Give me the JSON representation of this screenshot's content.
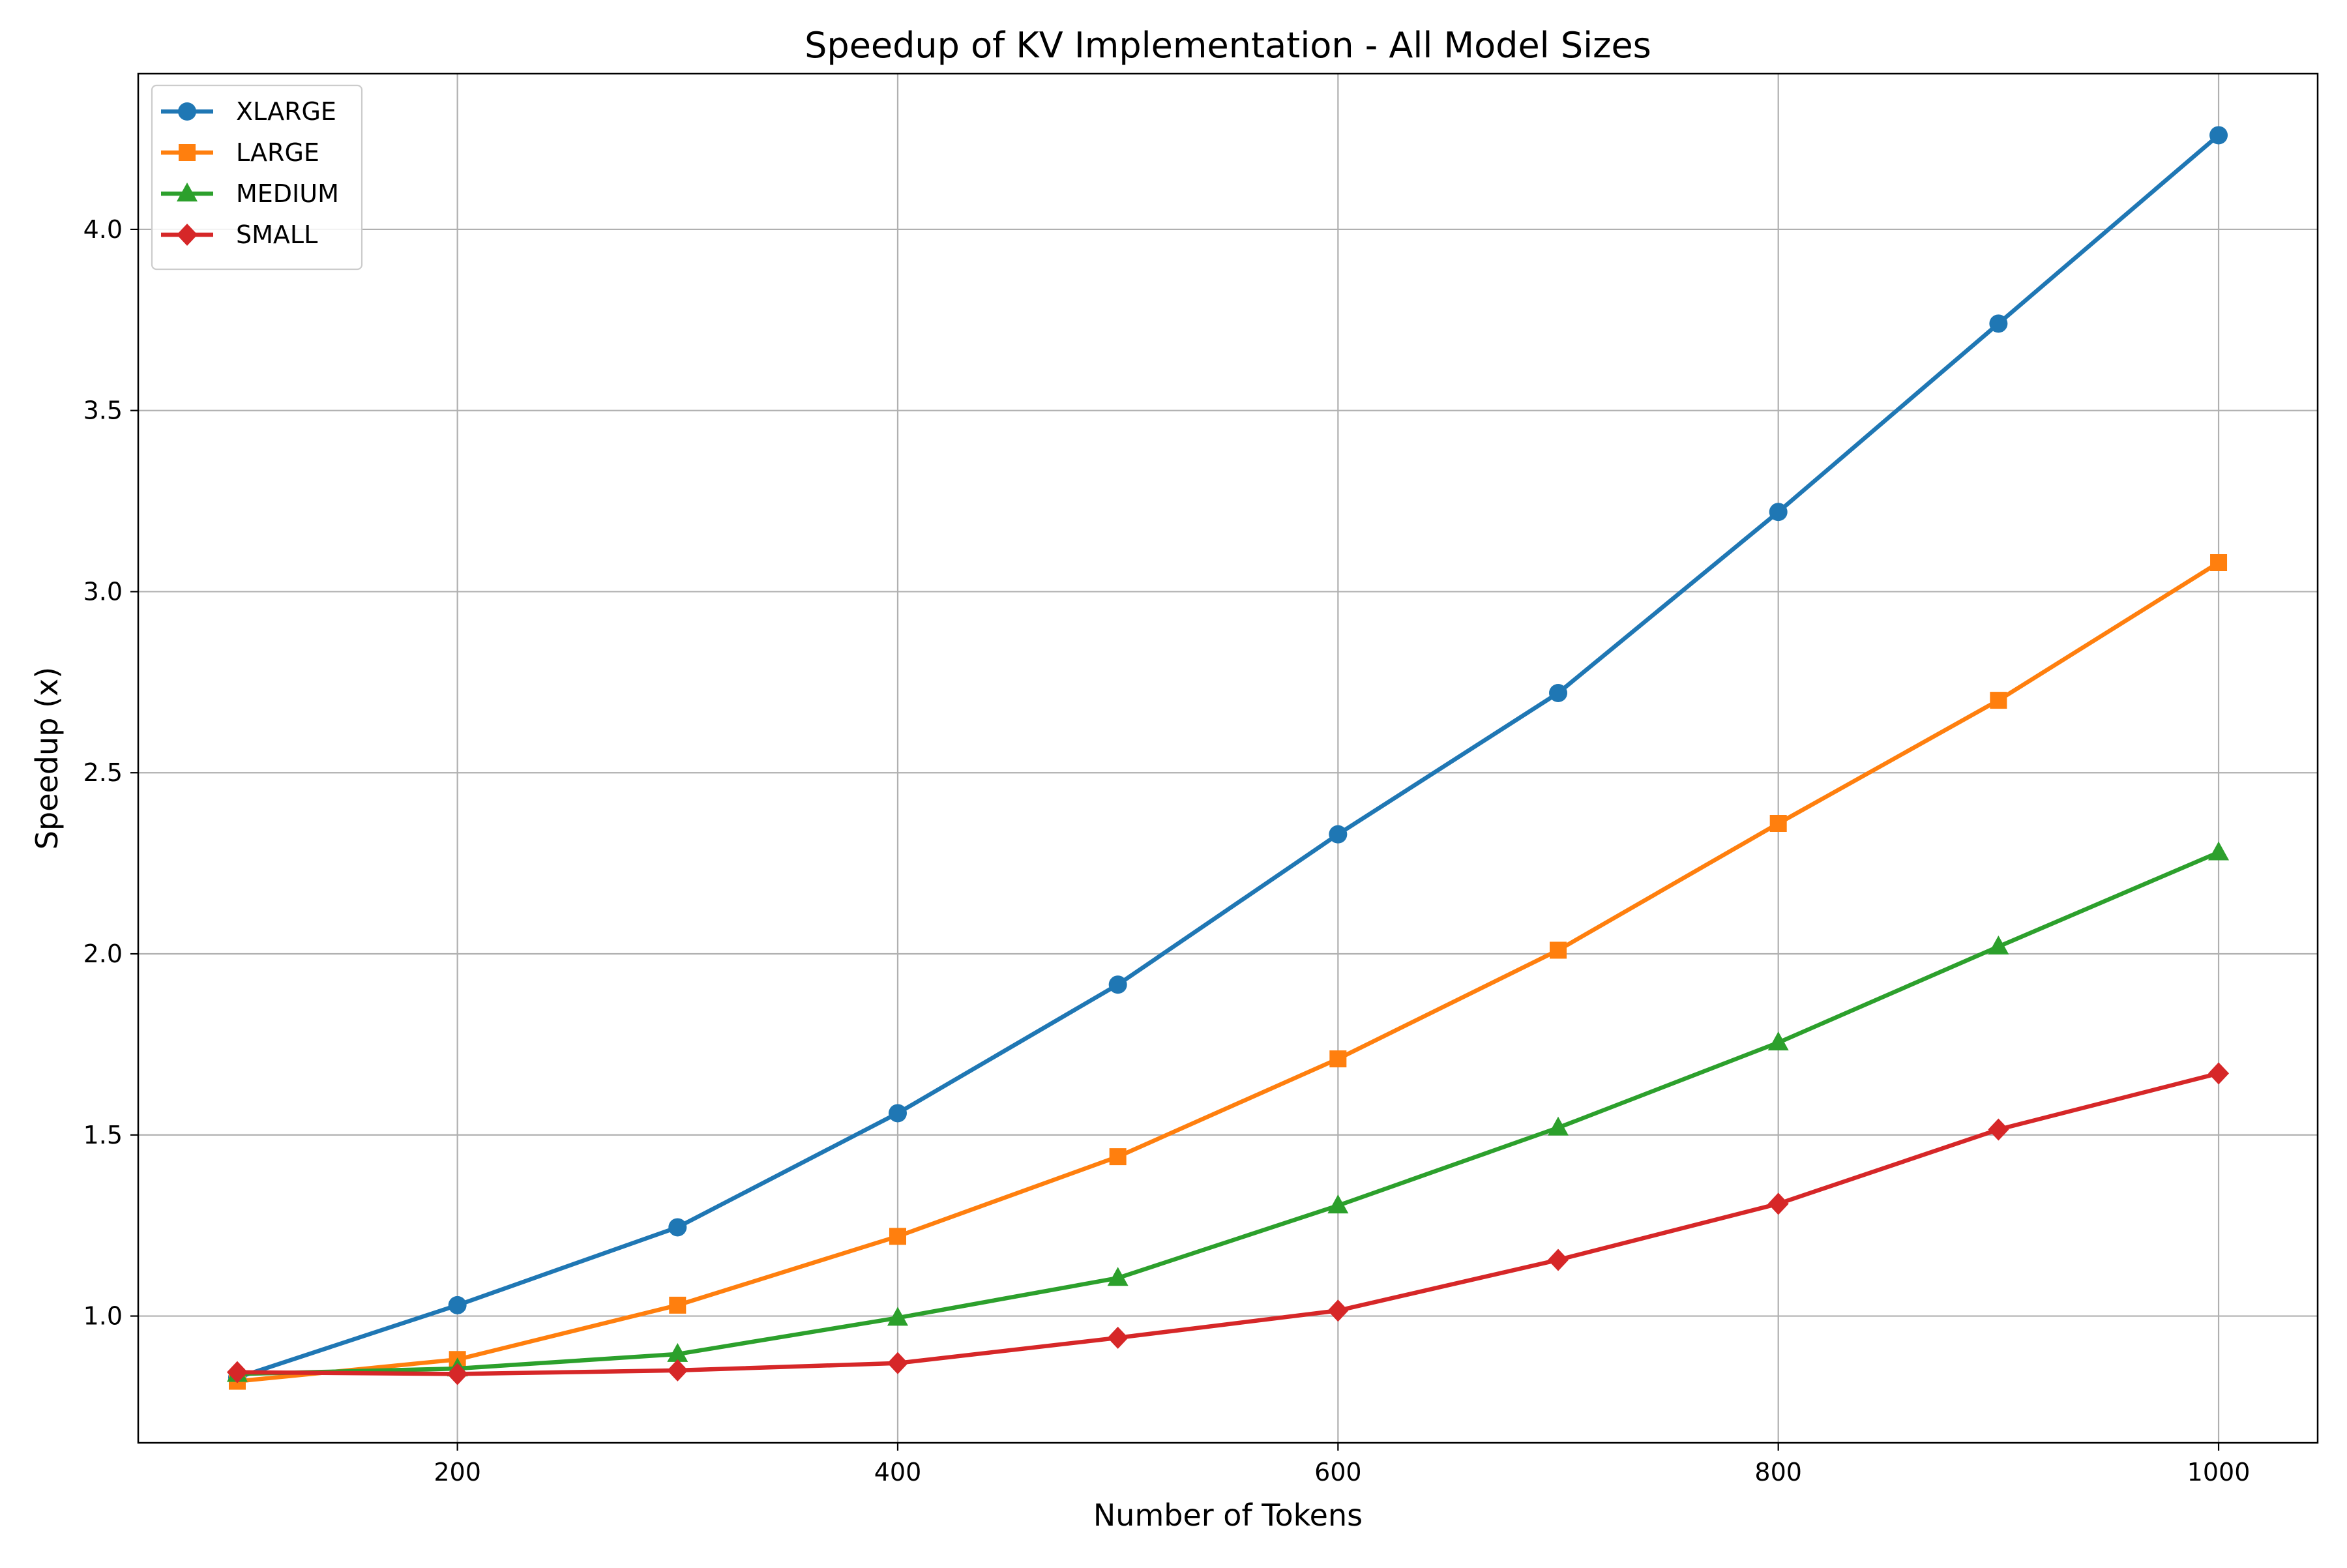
{
  "chart_data": {
    "type": "line",
    "title": "Speedup of KV Implementation - All Model Sizes",
    "xlabel": "Number of Tokens",
    "ylabel": "Speedup (x)",
    "x": [
      100,
      200,
      300,
      400,
      500,
      600,
      700,
      800,
      900,
      1000
    ],
    "xlim": [
      55,
      1045
    ],
    "ylim": [
      0.65,
      4.43
    ],
    "xticks": [
      200,
      400,
      600,
      800,
      1000
    ],
    "yticks": [
      1.0,
      1.5,
      2.0,
      2.5,
      3.0,
      3.5,
      4.0
    ],
    "xtick_labels": [
      "200",
      "400",
      "600",
      "800",
      "1000"
    ],
    "ytick_labels": [
      "1.0",
      "1.5",
      "2.0",
      "2.5",
      "3.0",
      "3.5",
      "4.0"
    ],
    "grid": true,
    "legend_position": "top-left",
    "series": [
      {
        "name": "XLARGE",
        "color": "#1f77b4",
        "marker": "circle",
        "values": [
          0.83,
          1.03,
          1.245,
          1.56,
          1.915,
          2.33,
          2.72,
          3.22,
          3.74,
          4.26
        ]
      },
      {
        "name": "LARGE",
        "color": "#ff7f0e",
        "marker": "square",
        "values": [
          0.82,
          0.88,
          1.03,
          1.22,
          1.44,
          1.71,
          2.01,
          2.36,
          2.7,
          3.08
        ]
      },
      {
        "name": "MEDIUM",
        "color": "#2ca02c",
        "marker": "triangle",
        "values": [
          0.84,
          0.855,
          0.895,
          0.995,
          1.105,
          1.305,
          1.52,
          1.755,
          2.02,
          2.28
        ]
      },
      {
        "name": "SMALL",
        "color": "#d62728",
        "marker": "diamond",
        "values": [
          0.845,
          0.84,
          0.85,
          0.87,
          0.94,
          1.015,
          1.155,
          1.31,
          1.515,
          1.67
        ]
      }
    ]
  }
}
